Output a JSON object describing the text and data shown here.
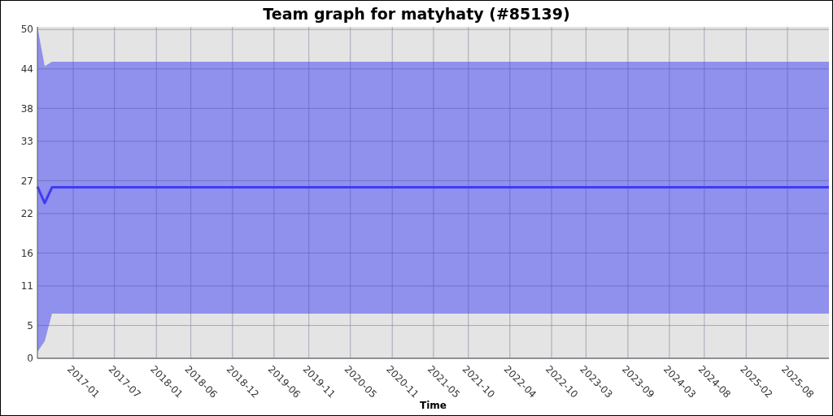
{
  "chart_data": {
    "type": "line",
    "title": "Team graph for matyhaty (#85139)",
    "xlabel": "Time",
    "x": [
      "2016-07-28",
      "2016-08-29",
      "2016-09-30",
      "2026-01-30"
    ],
    "series": [
      {
        "color": "#3c3cf5",
        "values": [
          26.1,
          23.6,
          26.0,
          26.0
        ],
        "lower": [
          1.0,
          2.6,
          6.8,
          6.8
        ],
        "upper": [
          50.4,
          44.4,
          45.1,
          45.1
        ]
      }
    ],
    "xlim": [
      "2016-07-28",
      "2026-01-30"
    ],
    "xticks": [
      "2017-01",
      "2017-07",
      "2018-01",
      "2018-06",
      "2018-12",
      "2019-06",
      "2019-11",
      "2020-05",
      "2020-11",
      "2021-05",
      "2021-10",
      "2022-04",
      "2022-10",
      "2023-03",
      "2023-09",
      "2024-03",
      "2024-08",
      "2025-02",
      "2025-08"
    ],
    "ylim": [
      0,
      50.4
    ],
    "yticks": [
      0,
      5,
      11,
      16,
      22,
      27,
      33,
      38,
      44,
      50
    ],
    "grid": true,
    "marker": "none",
    "line_style": "solid"
  }
}
